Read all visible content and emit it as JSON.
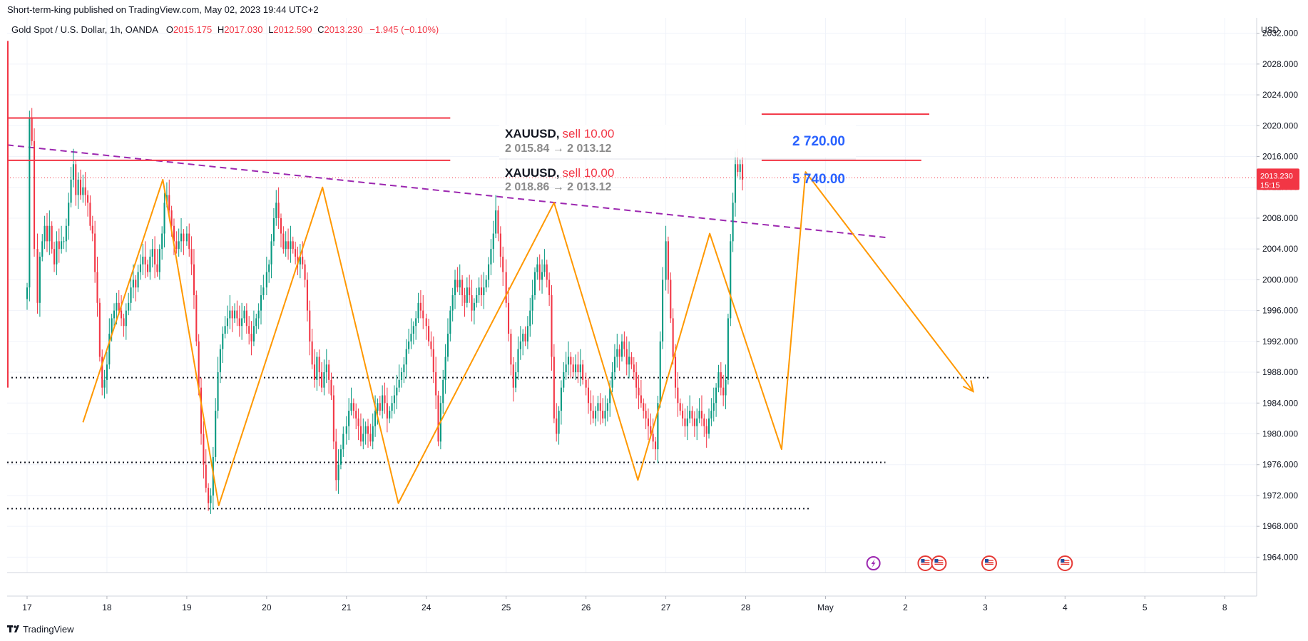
{
  "published_line": "Short-term-king published on TradingView.com, May 02, 2023 19:44 UTC+2",
  "legend": {
    "symbol": "Gold Spot / U.S. Dollar, 1h, OANDA",
    "open_label": "O",
    "open": "2015.175",
    "high_label": "H",
    "high": "2017.030",
    "low_label": "L",
    "low": "2012.590",
    "close_label": "C",
    "close": "2013.230",
    "change": "−1.945 (−0.10%)"
  },
  "currency": "USD",
  "price_badge": {
    "price": "2013.230",
    "countdown": "15:15"
  },
  "brand": "TradingView",
  "trades": [
    {
      "symbol": "XAUUSD,",
      "side": "sell 10.00",
      "path": "2 015.84 → 2 013.12",
      "pnl": "2 720.00"
    },
    {
      "symbol": "XAUUSD,",
      "side": "sell 10.00",
      "path": "2 018.86 → 2 013.12",
      "pnl": "5 740.00"
    }
  ],
  "colors": {
    "up": "#089981",
    "down": "#f23645",
    "zigzag": "#ff9800",
    "trendline": "#9c27b0",
    "level": "#f23645",
    "badge": "#f23645",
    "pnl": "#2962ff",
    "event_purple": "#9c27b0",
    "event_red": "#e53935"
  },
  "icons": {
    "earnings": "lightning-icon",
    "us_events": "us-flag-icon"
  },
  "chart_data": {
    "type": "candlestick",
    "title": "Gold Spot / U.S. Dollar, 1h, OANDA",
    "x_tick_labels": [
      "17",
      "18",
      "19",
      "20",
      "21",
      "24",
      "25",
      "26",
      "27",
      "28",
      "May",
      "2",
      "3",
      "4",
      "5",
      "8"
    ],
    "y_ticks": [
      1964,
      1968,
      1972,
      1976,
      1980,
      1984,
      1988,
      1992,
      1996,
      2000,
      2004,
      2008,
      2012,
      2016,
      2020,
      2024,
      2028,
      2032
    ],
    "y_tick_labels": [
      "1964.000",
      "1968.000",
      "1972.000",
      "1976.000",
      "1980.000",
      "1984.000",
      "1988.000",
      "1992.000",
      "1996.000",
      "2000.000",
      "2004.000",
      "2008.000",
      "2012.000",
      "2016.000",
      "2020.000",
      "2024.000",
      "2028.000",
      "2032.000"
    ],
    "ylim": [
      1962,
      2034
    ],
    "xlim": [
      -0.25,
      15.4
    ],
    "closes": [
      [
        0.0,
        1999
      ],
      [
        0.03,
        2021
      ],
      [
        0.06,
        2018
      ],
      [
        0.09,
        2004
      ],
      [
        0.13,
        1997
      ],
      [
        0.16,
        2003
      ],
      [
        0.19,
        2005
      ],
      [
        0.22,
        2007
      ],
      [
        0.25,
        2005
      ],
      [
        0.28,
        2007
      ],
      [
        0.31,
        2004
      ],
      [
        0.34,
        2002
      ],
      [
        0.37,
        2005
      ],
      [
        0.4,
        2004
      ],
      [
        0.43,
        2005
      ],
      [
        0.46,
        2005
      ],
      [
        0.49,
        2007
      ],
      [
        0.52,
        2010
      ],
      [
        0.55,
        2013
      ],
      [
        0.58,
        2015
      ],
      [
        0.61,
        2011
      ],
      [
        0.64,
        2013
      ],
      [
        0.67,
        2011
      ],
      [
        0.7,
        2012
      ],
      [
        0.73,
        2011
      ],
      [
        0.76,
        2010
      ],
      [
        0.79,
        2007
      ],
      [
        0.82,
        2006
      ],
      [
        0.85,
        2001
      ],
      [
        0.88,
        1997
      ],
      [
        0.91,
        1990
      ],
      [
        0.94,
        1986
      ],
      [
        0.97,
        1987
      ],
      [
        1.0,
        1989
      ],
      [
        1.03,
        1993
      ],
      [
        1.06,
        1995
      ],
      [
        1.09,
        1996
      ],
      [
        1.12,
        1997
      ],
      [
        1.15,
        1996
      ],
      [
        1.18,
        1995
      ],
      [
        1.21,
        1994
      ],
      [
        1.24,
        1996
      ],
      [
        1.27,
        1997
      ],
      [
        1.3,
        1999
      ],
      [
        1.33,
        2000
      ],
      [
        1.36,
        1999
      ],
      [
        1.39,
        2001
      ],
      [
        1.42,
        2002
      ],
      [
        1.45,
        2003
      ],
      [
        1.48,
        2002
      ],
      [
        1.51,
        2001
      ],
      [
        1.54,
        2003
      ],
      [
        1.57,
        2004
      ],
      [
        1.6,
        2002
      ],
      [
        1.63,
        2001
      ],
      [
        1.66,
        2004
      ],
      [
        1.69,
        2006
      ],
      [
        1.72,
        2010
      ],
      [
        1.75,
        2011
      ],
      [
        1.78,
        2009
      ],
      [
        1.81,
        2007
      ],
      [
        1.84,
        2005
      ],
      [
        1.87,
        2004
      ],
      [
        1.9,
        2005
      ],
      [
        1.93,
        2006
      ],
      [
        1.96,
        2005
      ],
      [
        2.0,
        2006
      ],
      [
        2.03,
        2004
      ],
      [
        2.06,
        2002
      ],
      [
        2.09,
        1998
      ],
      [
        2.12,
        1992
      ],
      [
        2.15,
        1986
      ],
      [
        2.18,
        1980
      ],
      [
        2.21,
        1976
      ],
      [
        2.24,
        1973
      ],
      [
        2.27,
        1971
      ],
      [
        2.3,
        1972
      ],
      [
        2.33,
        1977
      ],
      [
        2.36,
        1983
      ],
      [
        2.39,
        1988
      ],
      [
        2.42,
        1991
      ],
      [
        2.45,
        1993
      ],
      [
        2.48,
        1994
      ],
      [
        2.51,
        1995
      ],
      [
        2.54,
        1996
      ],
      [
        2.57,
        1995
      ],
      [
        2.6,
        1996
      ],
      [
        2.63,
        1995
      ],
      [
        2.66,
        1994
      ],
      [
        2.69,
        1995
      ],
      [
        2.72,
        1996
      ],
      [
        2.75,
        1994
      ],
      [
        2.78,
        1993
      ],
      [
        2.81,
        1992
      ],
      [
        2.84,
        1994
      ],
      [
        2.87,
        1995
      ],
      [
        2.9,
        1996
      ],
      [
        2.93,
        1998
      ],
      [
        2.96,
        1999
      ],
      [
        3.0,
        2001
      ],
      [
        3.03,
        2002
      ],
      [
        3.06,
        2005
      ],
      [
        3.09,
        2008
      ],
      [
        3.12,
        2010
      ],
      [
        3.15,
        2008
      ],
      [
        3.18,
        2006
      ],
      [
        3.21,
        2004
      ],
      [
        3.24,
        2005
      ],
      [
        3.27,
        2004
      ],
      [
        3.3,
        2005
      ],
      [
        3.33,
        2004
      ],
      [
        3.36,
        2003
      ],
      [
        3.39,
        2002
      ],
      [
        3.42,
        2003
      ],
      [
        3.45,
        2002
      ],
      [
        3.48,
        2000
      ],
      [
        3.51,
        1996
      ],
      [
        3.54,
        1992
      ],
      [
        3.57,
        1989
      ],
      [
        3.6,
        1987
      ],
      [
        3.63,
        1990
      ],
      [
        3.66,
        1988
      ],
      [
        3.69,
        1986
      ],
      [
        3.72,
        1988
      ],
      [
        3.75,
        1989
      ],
      [
        3.78,
        1987
      ],
      [
        3.81,
        1985
      ],
      [
        3.84,
        1979
      ],
      [
        3.87,
        1974
      ],
      [
        3.9,
        1976
      ],
      [
        3.93,
        1978
      ],
      [
        3.96,
        1980
      ],
      [
        4.0,
        1981
      ],
      [
        4.03,
        1983
      ],
      [
        4.06,
        1984
      ],
      [
        4.09,
        1983
      ],
      [
        4.12,
        1982
      ],
      [
        4.15,
        1981
      ],
      [
        4.18,
        1979
      ],
      [
        4.21,
        1980
      ],
      [
        4.24,
        1981
      ],
      [
        4.27,
        1980
      ],
      [
        4.3,
        1979
      ],
      [
        4.33,
        1981
      ],
      [
        4.36,
        1983
      ],
      [
        4.39,
        1984
      ],
      [
        4.42,
        1983
      ],
      [
        4.45,
        1985
      ],
      [
        4.48,
        1984
      ],
      [
        4.51,
        1982
      ],
      [
        4.54,
        1983
      ],
      [
        4.57,
        1984
      ],
      [
        4.6,
        1985
      ],
      [
        4.63,
        1986
      ],
      [
        4.66,
        1987
      ],
      [
        4.69,
        1988
      ],
      [
        4.72,
        1989
      ],
      [
        4.75,
        1991
      ],
      [
        4.78,
        1992
      ],
      [
        4.81,
        1993
      ],
      [
        4.84,
        1994
      ],
      [
        4.87,
        1995
      ],
      [
        4.9,
        1997
      ],
      [
        4.93,
        1996
      ],
      [
        4.96,
        1995
      ],
      [
        5.0,
        1994
      ],
      [
        5.03,
        1992
      ],
      [
        5.06,
        1991
      ],
      [
        5.09,
        1988
      ],
      [
        5.12,
        1985
      ],
      [
        5.15,
        1979
      ],
      [
        5.18,
        1984
      ],
      [
        5.21,
        1987
      ],
      [
        5.24,
        1990
      ],
      [
        5.27,
        1993
      ],
      [
        5.3,
        1996
      ],
      [
        5.33,
        1998
      ],
      [
        5.36,
        2000
      ],
      [
        5.39,
        1999
      ],
      [
        5.42,
        2000
      ],
      [
        5.45,
        1998
      ],
      [
        5.48,
        1997
      ],
      [
        5.51,
        1999
      ],
      [
        5.54,
        1998
      ],
      [
        5.57,
        1996
      ],
      [
        5.6,
        1997
      ],
      [
        5.63,
        1998
      ],
      [
        5.66,
        1999
      ],
      [
        5.69,
        1998
      ],
      [
        5.72,
        1999
      ],
      [
        5.75,
        2000
      ],
      [
        5.78,
        2002
      ],
      [
        5.81,
        2004
      ],
      [
        5.84,
        2006
      ],
      [
        5.87,
        2009
      ],
      [
        5.9,
        2006
      ],
      [
        5.93,
        2003
      ],
      [
        5.96,
        2001
      ],
      [
        6.0,
        1997
      ],
      [
        6.03,
        1993
      ],
      [
        6.06,
        1989
      ],
      [
        6.09,
        1986
      ],
      [
        6.12,
        1988
      ],
      [
        6.15,
        1991
      ],
      [
        6.18,
        1992
      ],
      [
        6.21,
        1993
      ],
      [
        6.24,
        1992
      ],
      [
        6.27,
        1994
      ],
      [
        6.3,
        1996
      ],
      [
        6.33,
        1998
      ],
      [
        6.36,
        2001
      ],
      [
        6.39,
        2002
      ],
      [
        6.42,
        2000
      ],
      [
        6.45,
        2001
      ],
      [
        6.48,
        2002
      ],
      [
        6.51,
        2000
      ],
      [
        6.54,
        1998
      ],
      [
        6.57,
        1990
      ],
      [
        6.6,
        1982
      ],
      [
        6.63,
        1980
      ],
      [
        6.66,
        1983
      ],
      [
        6.69,
        1986
      ],
      [
        6.72,
        1988
      ],
      [
        6.75,
        1989
      ],
      [
        6.78,
        1990
      ],
      [
        6.81,
        1989
      ],
      [
        6.84,
        1988
      ],
      [
        6.87,
        1989
      ],
      [
        6.9,
        1988
      ],
      [
        6.93,
        1989
      ],
      [
        6.96,
        1987
      ],
      [
        7.0,
        1986
      ],
      [
        7.03,
        1984
      ],
      [
        7.06,
        1983
      ],
      [
        7.09,
        1982
      ],
      [
        7.12,
        1983
      ],
      [
        7.15,
        1984
      ],
      [
        7.18,
        1983
      ],
      [
        7.21,
        1982
      ],
      [
        7.24,
        1983
      ],
      [
        7.27,
        1984
      ],
      [
        7.3,
        1986
      ],
      [
        7.33,
        1988
      ],
      [
        7.36,
        1990
      ],
      [
        7.39,
        1991
      ],
      [
        7.42,
        1990
      ],
      [
        7.45,
        1992
      ],
      [
        7.48,
        1991
      ],
      [
        7.51,
        1989
      ],
      [
        7.54,
        1990
      ],
      [
        7.57,
        1989
      ],
      [
        7.6,
        1988
      ],
      [
        7.63,
        1986
      ],
      [
        7.66,
        1985
      ],
      [
        7.69,
        1984
      ],
      [
        7.72,
        1983
      ],
      [
        7.75,
        1982
      ],
      [
        7.78,
        1981
      ],
      [
        7.81,
        1980
      ],
      [
        7.84,
        1979
      ],
      [
        7.87,
        1978
      ],
      [
        7.9,
        1984
      ],
      [
        7.93,
        1992
      ],
      [
        7.96,
        2000
      ],
      [
        8.0,
        2005
      ],
      [
        8.03,
        2000
      ],
      [
        8.06,
        1995
      ],
      [
        8.09,
        1990
      ],
      [
        8.12,
        1986
      ],
      [
        8.15,
        1984
      ],
      [
        8.18,
        1983
      ],
      [
        8.21,
        1982
      ],
      [
        8.24,
        1981
      ],
      [
        8.27,
        1982
      ],
      [
        8.3,
        1983
      ],
      [
        8.33,
        1982
      ],
      [
        8.36,
        1981
      ],
      [
        8.39,
        1982
      ],
      [
        8.42,
        1983
      ],
      [
        8.45,
        1982
      ],
      [
        8.48,
        1981
      ],
      [
        8.51,
        1980
      ],
      [
        8.54,
        1982
      ],
      [
        8.57,
        1983
      ],
      [
        8.6,
        1984
      ],
      [
        8.63,
        1986
      ],
      [
        8.66,
        1988
      ],
      [
        8.69,
        1986
      ],
      [
        8.72,
        1985
      ],
      [
        8.75,
        1987
      ],
      [
        8.78,
        1995
      ],
      [
        8.81,
        2005
      ],
      [
        8.84,
        2010
      ],
      [
        8.87,
        2015
      ],
      [
        8.9,
        2014
      ],
      [
        8.93,
        2015
      ],
      [
        8.96,
        2013
      ]
    ],
    "trade_lines": [
      {
        "price": 2021.0,
        "x_start": -0.25,
        "x_end": 5.3
      },
      {
        "price": 2015.5,
        "x_start": -0.25,
        "x_end": 5.3
      },
      {
        "price": 2021.5,
        "x_start": 9.2,
        "x_end": 11.3
      },
      {
        "price": 2015.5,
        "x_start": 9.2,
        "x_end": 11.2
      }
    ],
    "support_lines": [
      {
        "price": 1987.3,
        "x_start": -0.25,
        "x_end": 12.05
      },
      {
        "price": 1976.3,
        "x_start": -0.25,
        "x_end": 10.75
      },
      {
        "price": 1970.3,
        "x_start": -0.25,
        "x_end": 9.8
      }
    ],
    "current_price_line": 2013.23,
    "trendline": [
      [
        -0.25,
        2017.5
      ],
      [
        10.75,
        2005.5
      ]
    ],
    "zigzag": [
      [
        0.7,
        1981.5
      ],
      [
        1.7,
        2013
      ],
      [
        2.4,
        1970.7
      ],
      [
        3.7,
        2012
      ],
      [
        4.65,
        1971
      ],
      [
        6.6,
        2010
      ],
      [
        7.65,
        1974
      ],
      [
        8.55,
        2006
      ],
      [
        9.45,
        1978
      ],
      [
        9.75,
        2014
      ],
      [
        11.85,
        1985.5
      ]
    ],
    "zigzag_arrow_head": [
      11.85,
      1985.5
    ],
    "event_markers": [
      {
        "x": 10.6,
        "kind": "earnings"
      },
      {
        "x": 11.25,
        "kind": "us"
      },
      {
        "x": 11.42,
        "kind": "us"
      },
      {
        "x": 12.05,
        "kind": "us"
      },
      {
        "x": 13.0,
        "kind": "us"
      }
    ]
  }
}
